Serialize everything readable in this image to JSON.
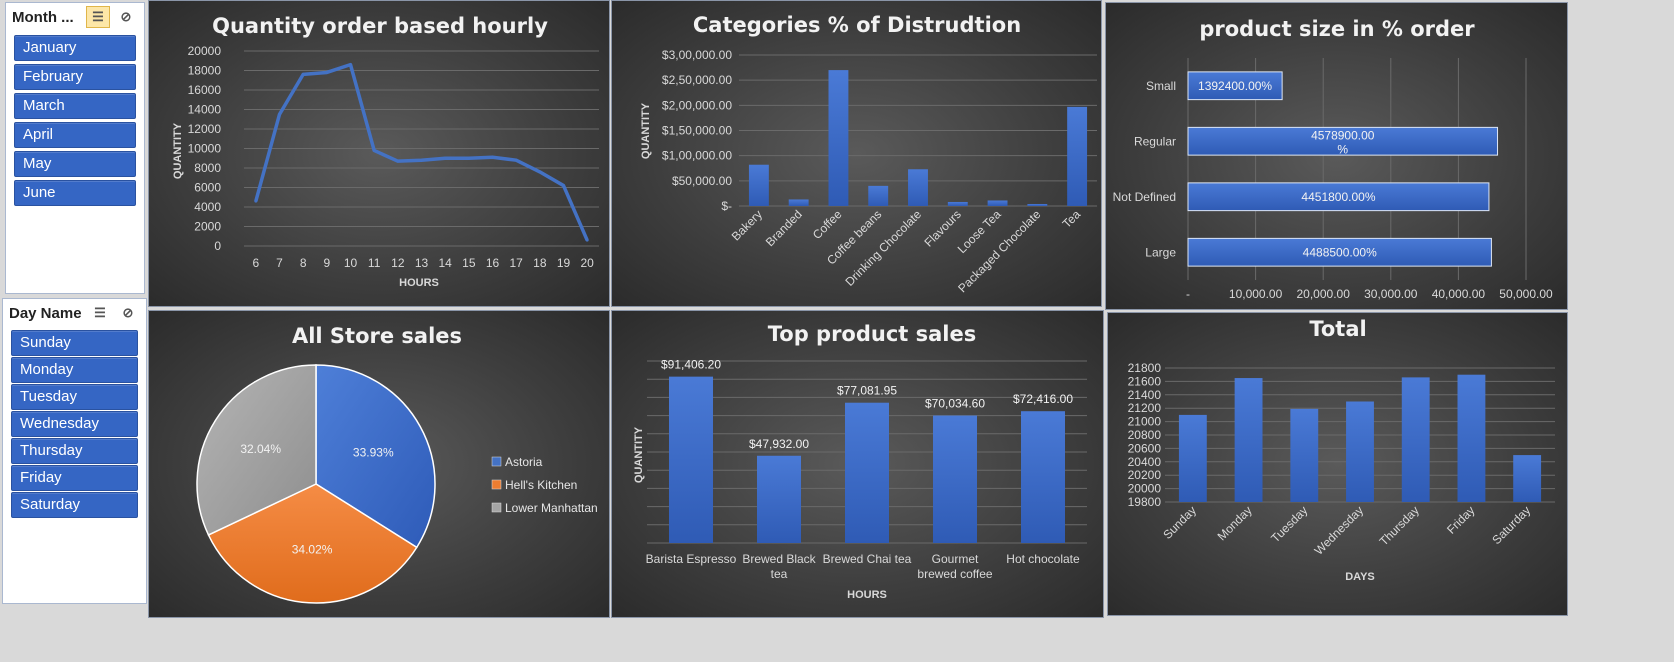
{
  "slicers": {
    "month": {
      "title": "Month ...",
      "items": [
        "January",
        "February",
        "March",
        "April",
        "May",
        "June"
      ]
    },
    "day": {
      "title": "Day Name",
      "items": [
        "Sunday",
        "Monday",
        "Tuesday",
        "Wednesday",
        "Thursday",
        "Friday",
        "Saturday"
      ]
    }
  },
  "colors": {
    "bar": "#3a68c8",
    "line": "#4472c4",
    "astoria": "#4472c4",
    "hells": "#ed7d31",
    "lower": "#a5a5a5"
  },
  "chart_data": [
    {
      "id": "hourly",
      "type": "line",
      "title": "Quantity order based hourly",
      "xlabel": "HOURS",
      "ylabel": "QUANTITY",
      "x": [
        6,
        7,
        8,
        9,
        10,
        11,
        12,
        13,
        14,
        15,
        16,
        17,
        18,
        19,
        20
      ],
      "values": [
        4600,
        13500,
        17600,
        17800,
        18600,
        9800,
        8700,
        8800,
        9000,
        9000,
        9100,
        8800,
        7600,
        6200,
        600
      ],
      "ylim": [
        0,
        20000
      ],
      "yticks": [
        "0",
        "2000",
        "4000",
        "6000",
        "8000",
        "10000",
        "12000",
        "14000",
        "16000",
        "18000",
        "20000"
      ]
    },
    {
      "id": "categories",
      "type": "bar",
      "title": "Categories % of Distrudtion",
      "ylabel": "QUANTITY",
      "categories": [
        "Bakery",
        "Branded",
        "Coffee",
        "Coffee beans",
        "Drinking Chocolate",
        "Flavours",
        "Loose Tea",
        "Packaged Chocolate",
        "Tea"
      ],
      "values": [
        82000,
        13000,
        270000,
        40000,
        73000,
        8000,
        11000,
        4000,
        197000
      ],
      "ylim": [
        0,
        300000
      ],
      "yticks": [
        "$-",
        "$50,000.00",
        "$1,00,000.00",
        "$1,50,000.00",
        "$2,00,000.00",
        "$2,50,000.00",
        "$3,00,000.00"
      ]
    },
    {
      "id": "size",
      "type": "bar",
      "orientation": "horizontal",
      "title": "product size in % order",
      "categories": [
        "Small",
        "Regular",
        "Not Defined",
        "Large"
      ],
      "values": [
        13924,
        45789,
        44518,
        44885
      ],
      "data_labels": [
        "1392400.00%",
        "4578900.00 %",
        "4451800.00%",
        "4488500.00%"
      ],
      "xlim": [
        0,
        50000
      ],
      "xticks": [
        "-",
        "10,000.00",
        "20,000.00",
        "30,000.00",
        "40,000.00",
        "50,000.00"
      ]
    },
    {
      "id": "stores",
      "type": "pie",
      "title": "All Store sales",
      "labels": [
        "Astoria",
        "Hell's Kitchen",
        "Lower Manhattan"
      ],
      "values": [
        33.93,
        34.02,
        32.04
      ],
      "data_labels": [
        "33.93%",
        "34.02%",
        "32.04%"
      ],
      "legend": "right"
    },
    {
      "id": "top",
      "type": "bar",
      "title": "Top product sales",
      "xlabel": "HOURS",
      "ylabel": "QUANTITY",
      "categories": [
        "Barista Espresso",
        "Brewed Black tea",
        "Brewed Chai tea",
        "Gourmet brewed coffee",
        "Hot chocolate"
      ],
      "category_lines": [
        [
          "Barista Espresso"
        ],
        [
          "Brewed Black",
          "tea"
        ],
        [
          "Brewed Chai tea"
        ],
        [
          "Gourmet",
          "brewed coffee"
        ],
        [
          "Hot chocolate"
        ]
      ],
      "values": [
        91406.2,
        47932.0,
        77081.95,
        70034.6,
        72416.0
      ],
      "data_labels": [
        "$91,406.20",
        "$47,932.00",
        "$77,081.95",
        "$70,034.60",
        "$72,416.00"
      ],
      "ylim": [
        0,
        100000
      ]
    },
    {
      "id": "total",
      "type": "bar",
      "title": "Total",
      "xlabel": "DAYS",
      "categories": [
        "Sunday",
        "Monday",
        "Tuesday",
        "Wednesday",
        "Thursday",
        "Friday",
        "Saturday"
      ],
      "values": [
        21100,
        21650,
        21190,
        21300,
        21660,
        21700,
        20500
      ],
      "ylim": [
        19800,
        21800
      ],
      "yticks": [
        "19800",
        "20000",
        "20200",
        "20400",
        "20600",
        "20800",
        "21000",
        "21200",
        "21400",
        "21600",
        "21800"
      ]
    }
  ]
}
